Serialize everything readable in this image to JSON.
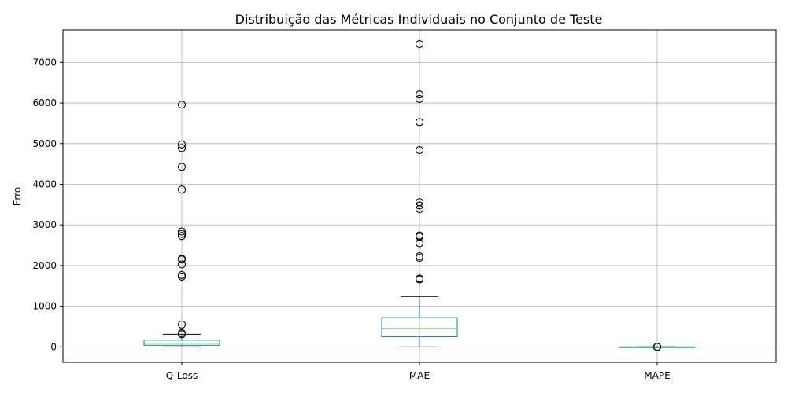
{
  "chart_data": {
    "type": "box",
    "title": "Distribuição das Métricas Individuais no Conjunto de Teste",
    "xlabel": "",
    "ylabel": "Erro",
    "ylim": [
      -380,
      7800
    ],
    "yticks": [
      0,
      1000,
      2000,
      3000,
      4000,
      5000,
      6000,
      7000
    ],
    "grid": true,
    "categories": [
      "Q-Loss",
      "MAE",
      "MAPE"
    ],
    "boxes": [
      {
        "category": "Q-Loss",
        "whisker_low": 0,
        "q1": 40,
        "median": 90,
        "q3": 165,
        "whisker_high": 310,
        "outliers": [
          5960,
          4980,
          4890,
          4430,
          3870,
          2840,
          2780,
          2730,
          2170,
          2150,
          2030,
          1770,
          1730,
          550,
          340,
          310
        ]
      },
      {
        "category": "MAE",
        "whisker_low": 0,
        "q1": 250,
        "median": 450,
        "q3": 720,
        "whisker_high": 1240,
        "outliers": [
          7450,
          6210,
          6100,
          5530,
          4840,
          3560,
          3480,
          3390,
          2740,
          2710,
          2550,
          2230,
          2190,
          1680,
          1660
        ]
      },
      {
        "category": "MAPE",
        "whisker_low": 0,
        "q1": 0,
        "median": 0,
        "q3": 0,
        "whisker_high": 0,
        "outliers": [
          0,
          0,
          0
        ]
      }
    ],
    "colors": {
      "box": "#1f77b4",
      "median": "#2ca02c",
      "whisker": "#000000",
      "grid": "#b0b0b0"
    }
  }
}
